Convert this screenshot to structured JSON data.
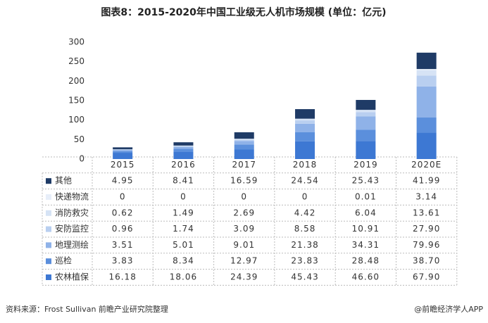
{
  "chart_data": {
    "type": "bar",
    "stacked": true,
    "title": "图表8：2015-2020年中国工业级无人机市场规模 (单位：亿元)",
    "source": "资料来源：Frost Sullivan 前瞻产业研究院整理",
    "credit": "@前瞻经济学人APP",
    "categories": [
      "2015",
      "2016",
      "2017",
      "2018",
      "2019",
      "2020E"
    ],
    "ylim": [
      0,
      300
    ],
    "yticks": [
      0,
      50,
      100,
      150,
      200,
      250,
      300
    ],
    "grid": false,
    "series": [
      {
        "name": "其他",
        "color": "#1f3b66",
        "values": [
          4.95,
          8.41,
          16.59,
          24.54,
          25.43,
          41.99
        ]
      },
      {
        "name": "快递物流",
        "color": "#e7eef9",
        "values": [
          0,
          0,
          0,
          0,
          0.01,
          3.14
        ]
      },
      {
        "name": "消防救灾",
        "color": "#d6e3f5",
        "values": [
          0.62,
          1.49,
          2.69,
          4.42,
          6.04,
          13.61
        ]
      },
      {
        "name": "安防监控",
        "color": "#b9cff0",
        "values": [
          0.96,
          1.74,
          3.09,
          8.58,
          10.91,
          27.9
        ],
        "value_labels": [
          "0.96",
          "1.74",
          "3.09",
          "8.58",
          "10.91",
          "27.90"
        ]
      },
      {
        "name": "地理测绘",
        "color": "#8fb2e8",
        "values": [
          3.51,
          5.01,
          9.01,
          21.38,
          34.31,
          79.96
        ]
      },
      {
        "name": "巡检",
        "color": "#5b8fdc",
        "values": [
          3.83,
          8.34,
          12.97,
          23.83,
          28.48,
          38.7
        ],
        "value_labels": [
          "3.83",
          "8.34",
          "12.97",
          "23.83",
          "28.48",
          "38.70"
        ]
      },
      {
        "name": "农林植保",
        "color": "#3d78d3",
        "values": [
          16.18,
          18.06,
          24.39,
          45.43,
          46.6,
          67.9
        ],
        "value_labels": [
          "16.18",
          "18.06",
          "24.39",
          "45.43",
          "46.60",
          "67.90"
        ]
      }
    ]
  }
}
